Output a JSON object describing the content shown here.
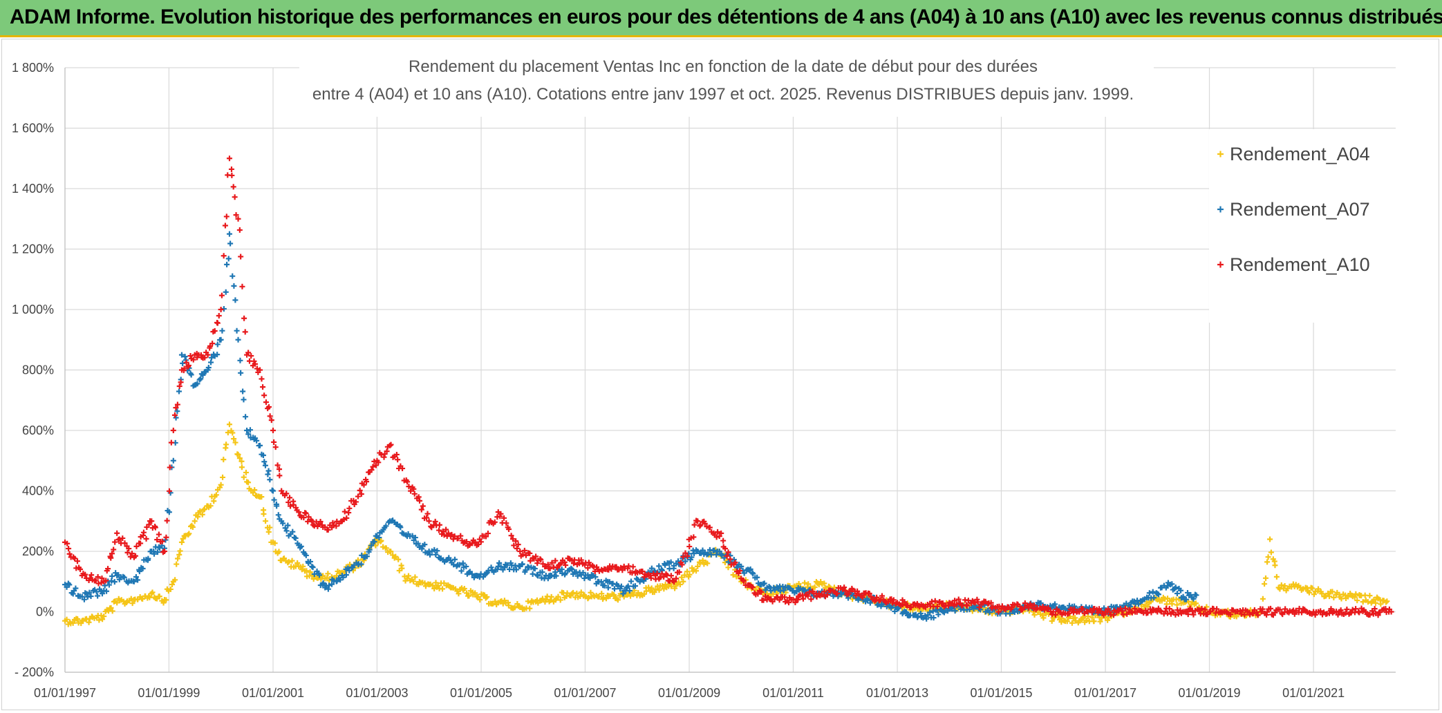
{
  "banner": {
    "title": "ADAM Informe. Evolution historique des performances en euros pour des détentions de 4 ans (A04) à 10 ans (A10) avec les revenus connus distribués"
  },
  "colors": {
    "banner_bg": "#7dc97a",
    "accent_border": "#e8b400",
    "A04": "#f5c518",
    "A07": "#1f77b4",
    "A10": "#e8191c",
    "grid": "#d9d9d9"
  },
  "chart_data": {
    "type": "scatter",
    "marker": "plus",
    "title_lines": [
      "Rendement du placement Ventas Inc en fonction de la date de début pour des durées",
      "entre 4 (A04) et 10 ans (A10). Cotations entre janv 1997 et oct. 2025. Revenus DISTRIBUES depuis janv. 1999."
    ],
    "xlabel": "",
    "ylabel": "",
    "x_range": [
      "1997-01-01",
      "2022-08-01"
    ],
    "ylim": [
      -200,
      1800
    ],
    "y_ticks": [
      -200,
      0,
      200,
      400,
      600,
      800,
      1000,
      1200,
      1400,
      1600,
      1800
    ],
    "y_tick_labels": [
      "- 200%",
      "0%",
      "200%",
      "400%",
      "600%",
      "800%",
      "1 000%",
      "1 200%",
      "1 400%",
      "1 600%",
      "1 800%"
    ],
    "x_ticks": [
      "1997-01-01",
      "1999-01-01",
      "2001-01-01",
      "2003-01-01",
      "2005-01-01",
      "2007-01-01",
      "2009-01-01",
      "2011-01-01",
      "2013-01-01",
      "2015-01-01",
      "2017-01-01",
      "2019-01-01",
      "2021-01-01"
    ],
    "x_tick_labels": [
      "01/01/1997",
      "01/01/1999",
      "01/01/2001",
      "01/01/2003",
      "01/01/2005",
      "01/01/2007",
      "01/01/2009",
      "01/01/2011",
      "01/01/2013",
      "01/01/2015",
      "01/01/2017",
      "01/01/2019",
      "01/01/2021"
    ],
    "grid": true,
    "legend_position": "right",
    "series": [
      {
        "name": "Rendement_A04",
        "color": "#f5c518",
        "points": [
          [
            "1997-01-01",
            -30
          ],
          [
            "1997-05-01",
            -30
          ],
          [
            "1997-10-01",
            -15
          ],
          [
            "1998-01-01",
            30
          ],
          [
            "1998-05-01",
            40
          ],
          [
            "1998-09-01",
            60
          ],
          [
            "1998-12-01",
            40
          ],
          [
            "1999-02-01",
            100
          ],
          [
            "1999-04-01",
            230
          ],
          [
            "1999-07-01",
            300
          ],
          [
            "1999-10-01",
            350
          ],
          [
            "2000-01-01",
            420
          ],
          [
            "2000-03-01",
            620
          ],
          [
            "2000-05-01",
            520
          ],
          [
            "2000-07-01",
            430
          ],
          [
            "2000-10-01",
            380
          ],
          [
            "2001-01-01",
            230
          ],
          [
            "2001-03-01",
            170
          ],
          [
            "2001-07-01",
            150
          ],
          [
            "2001-10-01",
            120
          ],
          [
            "2002-01-01",
            110
          ],
          [
            "2002-05-01",
            130
          ],
          [
            "2002-10-01",
            170
          ],
          [
            "2003-01-01",
            240
          ],
          [
            "2003-04-01",
            200
          ],
          [
            "2003-08-01",
            110
          ],
          [
            "2004-01-01",
            90
          ],
          [
            "2004-06-01",
            80
          ],
          [
            "2004-12-01",
            50
          ],
          [
            "2005-05-01",
            30
          ],
          [
            "2005-10-01",
            15
          ],
          [
            "2006-04-01",
            40
          ],
          [
            "2006-10-01",
            60
          ],
          [
            "2007-04-01",
            50
          ],
          [
            "2007-10-01",
            50
          ],
          [
            "2008-04-01",
            70
          ],
          [
            "2008-10-01",
            90
          ],
          [
            "2009-03-01",
            150
          ],
          [
            "2009-08-01",
            200
          ],
          [
            "2010-01-01",
            100
          ],
          [
            "2010-07-01",
            60
          ],
          [
            "2011-01-01",
            80
          ],
          [
            "2011-07-01",
            90
          ],
          [
            "2012-01-01",
            60
          ],
          [
            "2012-07-01",
            40
          ],
          [
            "2013-01-01",
            20
          ],
          [
            "2013-07-01",
            10
          ],
          [
            "2014-01-01",
            20
          ],
          [
            "2014-07-01",
            10
          ],
          [
            "2015-01-01",
            0
          ],
          [
            "2015-07-01",
            10
          ],
          [
            "2016-01-01",
            -20
          ],
          [
            "2016-07-01",
            -30
          ],
          [
            "2017-01-01",
            -20
          ],
          [
            "2017-07-01",
            10
          ],
          [
            "2018-01-01",
            40
          ],
          [
            "2018-07-01",
            30
          ],
          [
            "2019-01-01",
            0
          ],
          [
            "2019-07-01",
            -10
          ],
          [
            "2020-01-01",
            0
          ],
          [
            "2020-03-01",
            240
          ],
          [
            "2020-05-01",
            80
          ],
          [
            "2020-10-01",
            80
          ],
          [
            "2021-03-01",
            60
          ],
          [
            "2021-09-01",
            50
          ],
          [
            "2022-03-01",
            40
          ],
          [
            "2022-06-01",
            35
          ]
        ]
      },
      {
        "name": "Rendement_A07",
        "color": "#1f77b4",
        "points": [
          [
            "1997-01-01",
            90
          ],
          [
            "1997-05-01",
            50
          ],
          [
            "1997-10-01",
            70
          ],
          [
            "1998-01-01",
            120
          ],
          [
            "1998-05-01",
            100
          ],
          [
            "1998-09-01",
            200
          ],
          [
            "1998-12-01",
            210
          ],
          [
            "1999-02-01",
            500
          ],
          [
            "1999-04-01",
            850
          ],
          [
            "1999-07-01",
            750
          ],
          [
            "1999-10-01",
            800
          ],
          [
            "2000-01-01",
            900
          ],
          [
            "2000-03-01",
            1250
          ],
          [
            "2000-05-01",
            900
          ],
          [
            "2000-07-01",
            600
          ],
          [
            "2000-10-01",
            550
          ],
          [
            "2001-01-01",
            400
          ],
          [
            "2001-03-01",
            300
          ],
          [
            "2001-07-01",
            220
          ],
          [
            "2001-10-01",
            150
          ],
          [
            "2002-01-01",
            80
          ],
          [
            "2002-05-01",
            120
          ],
          [
            "2002-10-01",
            180
          ],
          [
            "2003-01-01",
            250
          ],
          [
            "2003-04-01",
            300
          ],
          [
            "2003-08-01",
            250
          ],
          [
            "2004-01-01",
            200
          ],
          [
            "2004-06-01",
            170
          ],
          [
            "2004-12-01",
            120
          ],
          [
            "2005-05-01",
            150
          ],
          [
            "2005-10-01",
            150
          ],
          [
            "2006-04-01",
            120
          ],
          [
            "2006-10-01",
            140
          ],
          [
            "2007-04-01",
            100
          ],
          [
            "2007-10-01",
            70
          ],
          [
            "2008-04-01",
            130
          ],
          [
            "2008-10-01",
            160
          ],
          [
            "2009-03-01",
            200
          ],
          [
            "2009-08-01",
            200
          ],
          [
            "2010-01-01",
            150
          ],
          [
            "2010-07-01",
            80
          ],
          [
            "2011-01-01",
            70
          ],
          [
            "2011-07-01",
            60
          ],
          [
            "2012-01-01",
            60
          ],
          [
            "2012-07-01",
            40
          ],
          [
            "2013-01-01",
            10
          ],
          [
            "2013-07-01",
            -20
          ],
          [
            "2014-01-01",
            10
          ],
          [
            "2014-07-01",
            20
          ],
          [
            "2015-01-01",
            0
          ],
          [
            "2015-07-01",
            20
          ],
          [
            "2016-01-01",
            20
          ],
          [
            "2016-07-01",
            5
          ],
          [
            "2017-01-01",
            0
          ],
          [
            "2017-07-01",
            30
          ],
          [
            "2018-01-01",
            60
          ],
          [
            "2018-04-01",
            90
          ],
          [
            "2018-07-01",
            50
          ],
          [
            "2018-10-01",
            55
          ]
        ]
      },
      {
        "name": "Rendement_A10",
        "color": "#e8191c",
        "points": [
          [
            "1997-01-01",
            230
          ],
          [
            "1997-05-01",
            120
          ],
          [
            "1997-10-01",
            100
          ],
          [
            "1998-01-01",
            260
          ],
          [
            "1998-05-01",
            180
          ],
          [
            "1998-09-01",
            300
          ],
          [
            "1998-12-01",
            200
          ],
          [
            "1999-02-01",
            600
          ],
          [
            "1999-04-01",
            800
          ],
          [
            "1999-07-01",
            850
          ],
          [
            "1999-10-01",
            850
          ],
          [
            "2000-01-01",
            1000
          ],
          [
            "2000-03-01",
            1500
          ],
          [
            "2000-05-01",
            1300
          ],
          [
            "2000-07-01",
            850
          ],
          [
            "2000-10-01",
            800
          ],
          [
            "2001-01-01",
            600
          ],
          [
            "2001-03-01",
            400
          ],
          [
            "2001-07-01",
            330
          ],
          [
            "2001-10-01",
            300
          ],
          [
            "2002-01-01",
            280
          ],
          [
            "2002-05-01",
            300
          ],
          [
            "2002-10-01",
            420
          ],
          [
            "2003-01-01",
            500
          ],
          [
            "2003-04-01",
            550
          ],
          [
            "2003-08-01",
            430
          ],
          [
            "2004-01-01",
            300
          ],
          [
            "2004-06-01",
            250
          ],
          [
            "2004-12-01",
            220
          ],
          [
            "2005-05-01",
            330
          ],
          [
            "2005-10-01",
            200
          ],
          [
            "2006-04-01",
            150
          ],
          [
            "2006-10-01",
            170
          ],
          [
            "2007-04-01",
            140
          ],
          [
            "2007-10-01",
            150
          ],
          [
            "2008-04-01",
            120
          ],
          [
            "2008-10-01",
            110
          ],
          [
            "2009-03-01",
            300
          ],
          [
            "2009-08-01",
            250
          ],
          [
            "2010-01-01",
            110
          ],
          [
            "2010-07-01",
            40
          ],
          [
            "2011-01-01",
            40
          ],
          [
            "2011-07-01",
            60
          ],
          [
            "2012-01-01",
            70
          ],
          [
            "2012-07-01",
            50
          ],
          [
            "2013-01-01",
            30
          ],
          [
            "2013-07-01",
            20
          ],
          [
            "2014-01-01",
            30
          ],
          [
            "2014-07-01",
            30
          ],
          [
            "2015-01-01",
            10
          ],
          [
            "2015-07-01",
            20
          ],
          [
            "2016-01-01",
            0
          ],
          [
            "2016-07-01",
            0
          ],
          [
            "2017-01-01",
            0
          ],
          [
            "2017-07-01",
            0
          ],
          [
            "2018-01-01",
            0
          ],
          [
            "2018-07-01",
            0
          ],
          [
            "2019-01-01",
            0
          ],
          [
            "2019-07-01",
            0
          ],
          [
            "2020-01-01",
            0
          ],
          [
            "2020-07-01",
            0
          ],
          [
            "2021-01-01",
            0
          ],
          [
            "2021-07-01",
            0
          ],
          [
            "2022-01-01",
            0
          ],
          [
            "2022-07-01",
            0
          ]
        ]
      }
    ]
  }
}
